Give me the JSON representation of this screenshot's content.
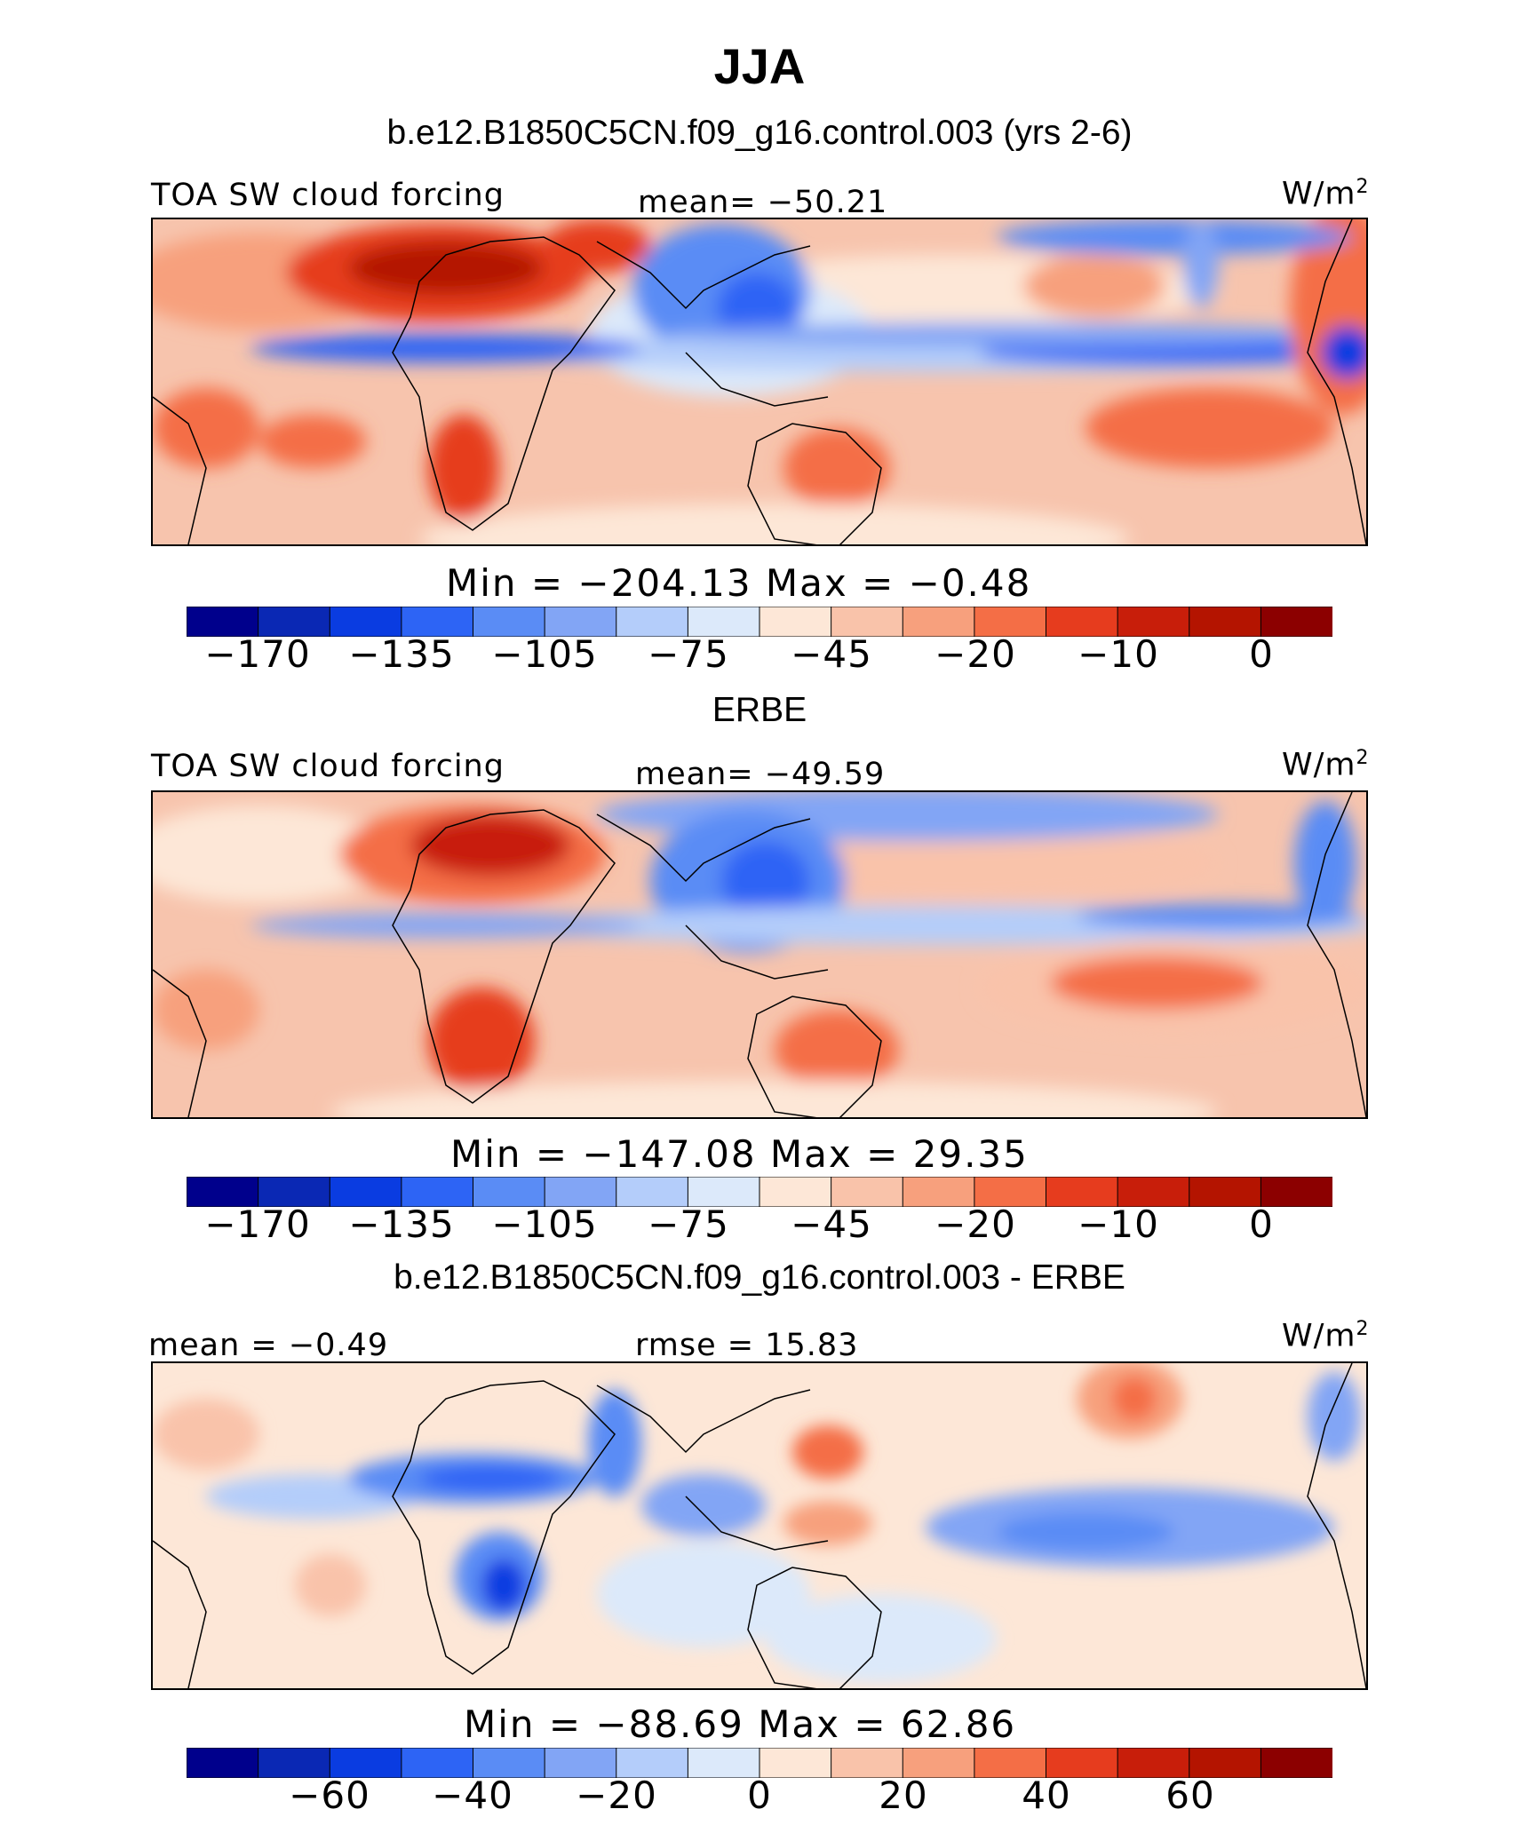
{
  "title": "JJA",
  "panels": [
    {
      "id": "model",
      "subtitle": "b.e12.B1850C5CN.f09_g16.control.003 (yrs 2-6)",
      "left_label": "TOA SW cloud forcing",
      "center_label": "mean= −50.21",
      "units": "W/m",
      "units_sup": "2",
      "minmax_label": "Min  =  −204.13  Max  =   −0.48",
      "tick_labels": [
        "−170",
        "−135",
        "−105",
        "−75",
        "−45",
        "−20",
        "−10",
        "0"
      ]
    },
    {
      "id": "erbe",
      "subtitle": "ERBE",
      "left_label": "TOA SW cloud forcing",
      "center_label": "mean= −49.59",
      "units": "W/m",
      "units_sup": "2",
      "minmax_label": "Min  =  −147.08  Max  =   29.35",
      "tick_labels": [
        "−170",
        "−135",
        "−105",
        "−75",
        "−45",
        "−20",
        "−10",
        "0"
      ]
    },
    {
      "id": "diff",
      "subtitle": "b.e12.B1850C5CN.f09_g16.control.003 - ERBE",
      "left_label": "mean =   −0.49",
      "center_label": "rmse =   15.83",
      "units": "W/m",
      "units_sup": "2",
      "minmax_label": "Min  =  −88.69  Max  =   62.86",
      "tick_labels": [
        "−60",
        "−40",
        "−20",
        "0",
        "20",
        "40",
        "60"
      ]
    }
  ],
  "chart_data": {
    "type": "heatmap",
    "title": "JJA",
    "colorbar_colors": [
      "#00008c",
      "#0a28b4",
      "#0a3ce1",
      "#2d64f5",
      "#5a8cf5",
      "#82a5f5",
      "#b4cdfa",
      "#dce9fa",
      "#fde7d7",
      "#f9c3aa",
      "#f7a07d",
      "#f46e46",
      "#e63c1e",
      "#c81e0a",
      "#b41400",
      "#8c0000"
    ],
    "maps": [
      {
        "name": "b.e12.B1850C5CN.f09_g16.control.003 (yrs 2-6)",
        "variable": "TOA SW cloud forcing",
        "mean": -50.21,
        "min": -204.13,
        "max": -0.48,
        "levels": [
          -170,
          -135,
          -105,
          -75,
          -45,
          -20,
          -10,
          0
        ]
      },
      {
        "name": "ERBE",
        "variable": "TOA SW cloud forcing",
        "mean": -49.59,
        "min": -147.08,
        "max": 29.35,
        "levels": [
          -170,
          -135,
          -105,
          -75,
          -45,
          -20,
          -10,
          0
        ]
      },
      {
        "name": "b.e12.B1850C5CN.f09_g16.control.003 - ERBE",
        "mean": -0.49,
        "rmse": 15.83,
        "min": -88.69,
        "max": 62.86,
        "levels": [
          -60,
          -40,
          -20,
          0,
          20,
          40,
          60
        ]
      }
    ]
  }
}
